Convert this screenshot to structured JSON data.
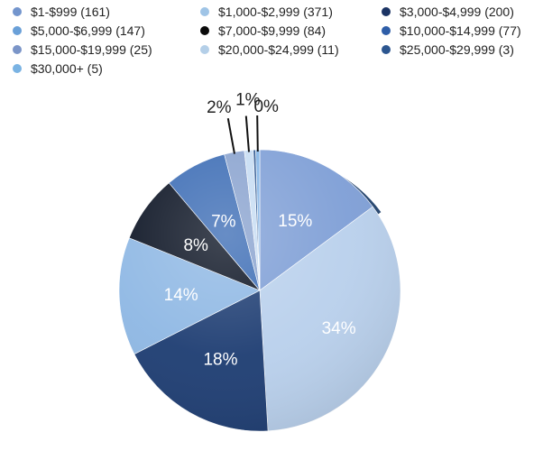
{
  "chart_data": {
    "type": "pie",
    "title": "",
    "slices": [
      {
        "label": "$1-$999 (161)",
        "value": 161,
        "percent_label": "15%",
        "color": "#7f9fd6",
        "text_color": "#ffffff"
      },
      {
        "label": "$1,000-$2,999 (371)",
        "value": 371,
        "percent_label": "34%",
        "color": "#b9d0ec",
        "text_color": "#ffffff"
      },
      {
        "label": "$3,000-$4,999 (200)",
        "value": 200,
        "percent_label": "18%",
        "color": "#1f3e73",
        "text_color": "#ffffff"
      },
      {
        "label": "$5,000-$6,999 (147)",
        "value": 147,
        "percent_label": "14%",
        "color": "#8fb8e4",
        "text_color": "#ffffff"
      },
      {
        "label": "$7,000-$9,999 (84)",
        "value": 84,
        "percent_label": "8%",
        "color": "#0c1424",
        "text_color": "#ffffff"
      },
      {
        "label": "$10,000-$14,999 (77)",
        "value": 77,
        "percent_label": "7%",
        "color": "#3d6db5",
        "text_color": "#ffffff"
      },
      {
        "label": "$15,000-$19,999 (25)",
        "value": 25,
        "percent_label": "2%",
        "color": "#8aa3cf",
        "text_color": "#222222"
      },
      {
        "label": "$20,000-$24,999 (11)",
        "value": 11,
        "percent_label": "1%",
        "color": "#c6dcf3",
        "text_color": "#222222"
      },
      {
        "label": "$25,000-$29,999 (3)",
        "value": 3,
        "percent_label": "",
        "color": "#2c5690",
        "text_color": "#222222"
      },
      {
        "label": "$30,000+ (5)",
        "value": 5,
        "percent_label": "0%",
        "color": "#82b4e6",
        "text_color": "#222222"
      }
    ],
    "legend_position": "top",
    "legend_marker_colors": [
      "#7395cd",
      "#9fc4e6",
      "#1b3464",
      "#6aa0d8",
      "#0a0a0a",
      "#2e5ea8",
      "#7b95c8",
      "#b4cfe8",
      "#2c5690",
      "#7ab3e3"
    ]
  }
}
